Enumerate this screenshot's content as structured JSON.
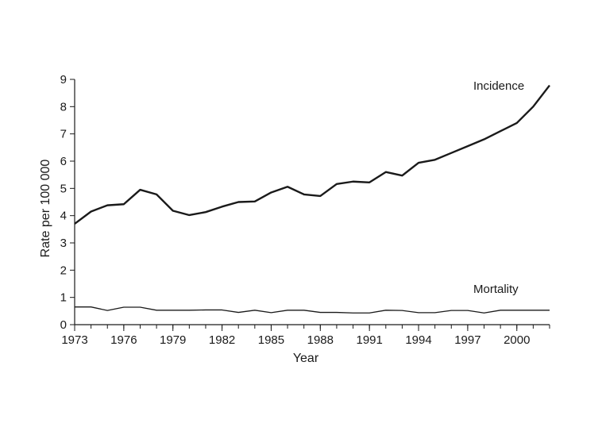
{
  "chart_data": {
    "type": "line",
    "title": "",
    "xlabel": "Year",
    "ylabel": "Rate per 100 000",
    "xlim": [
      1973,
      2002
    ],
    "ylim": [
      0,
      9
    ],
    "x_ticks": [
      1973,
      1976,
      1979,
      1982,
      1985,
      1988,
      1991,
      1994,
      1997,
      2000
    ],
    "y_ticks": [
      0,
      1,
      2,
      3,
      4,
      5,
      6,
      7,
      8,
      9
    ],
    "grid": false,
    "legend": "none",
    "x": [
      1973,
      1974,
      1975,
      1976,
      1977,
      1978,
      1979,
      1980,
      1981,
      1982,
      1983,
      1984,
      1985,
      1986,
      1987,
      1988,
      1989,
      1990,
      1991,
      1992,
      1993,
      1994,
      1995,
      1996,
      1997,
      1998,
      1999,
      2000,
      2001,
      2002
    ],
    "series": [
      {
        "name": "Incidence",
        "color": "#1a1a1a",
        "values": [
          3.7,
          4.15,
          4.38,
          4.42,
          4.95,
          4.78,
          4.18,
          4.02,
          4.13,
          4.33,
          4.5,
          4.52,
          4.85,
          5.06,
          4.78,
          4.72,
          5.16,
          5.25,
          5.22,
          5.6,
          5.47,
          5.94,
          6.05,
          6.3,
          6.55,
          6.8,
          7.1,
          7.4,
          8.0,
          8.78
        ]
      },
      {
        "name": "Mortality",
        "color": "#1a1a1a",
        "values": [
          0.65,
          0.65,
          0.52,
          0.64,
          0.64,
          0.53,
          0.53,
          0.53,
          0.54,
          0.54,
          0.45,
          0.53,
          0.44,
          0.53,
          0.53,
          0.45,
          0.45,
          0.43,
          0.43,
          0.53,
          0.52,
          0.44,
          0.44,
          0.52,
          0.52,
          0.43,
          0.53,
          0.53,
          0.53,
          0.53
        ]
      }
    ]
  }
}
